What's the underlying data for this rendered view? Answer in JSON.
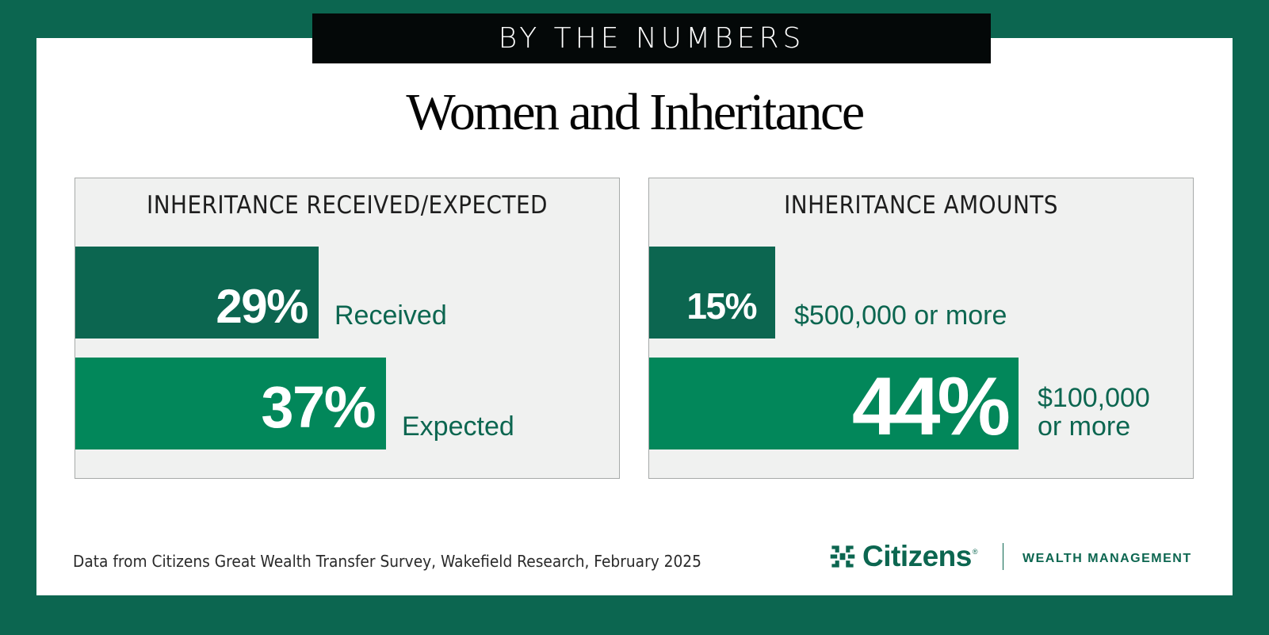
{
  "banner": "BY THE NUMBERS",
  "title": "Women and Inheritance",
  "chart_data": [
    {
      "type": "bar",
      "orientation": "horizontal",
      "title": "INHERITANCE RECEIVED/EXPECTED",
      "categories": [
        "Received",
        "Expected"
      ],
      "values": [
        29,
        37
      ],
      "value_labels": [
        "29%",
        "37%"
      ],
      "unit": "%",
      "colors": [
        "#0c6650",
        "#02875a"
      ]
    },
    {
      "type": "bar",
      "orientation": "horizontal",
      "title": "INHERITANCE AMOUNTS",
      "categories": [
        "$500,000 or more",
        "$100,000 or more"
      ],
      "category_lines": [
        [
          "$500,000 or more"
        ],
        [
          "$100,000",
          "or more"
        ]
      ],
      "values": [
        15,
        44
      ],
      "value_labels": [
        "15%",
        "44%"
      ],
      "unit": "%",
      "colors": [
        "#0c6650",
        "#02875a"
      ]
    }
  ],
  "footer": {
    "source": "Data from Citizens Great Wealth Transfer Survey, Wakefield Research, February 2025"
  },
  "logo": {
    "name": "Citizens",
    "mark": "®",
    "division": "WEALTH MANAGEMENT",
    "icon": "citizens-logo-icon"
  },
  "colors": {
    "frame": "#0c6650",
    "bar_dark": "#0c6650",
    "bar_bright": "#02875a",
    "panel": "#f0f1f0",
    "banner": "#040808"
  }
}
